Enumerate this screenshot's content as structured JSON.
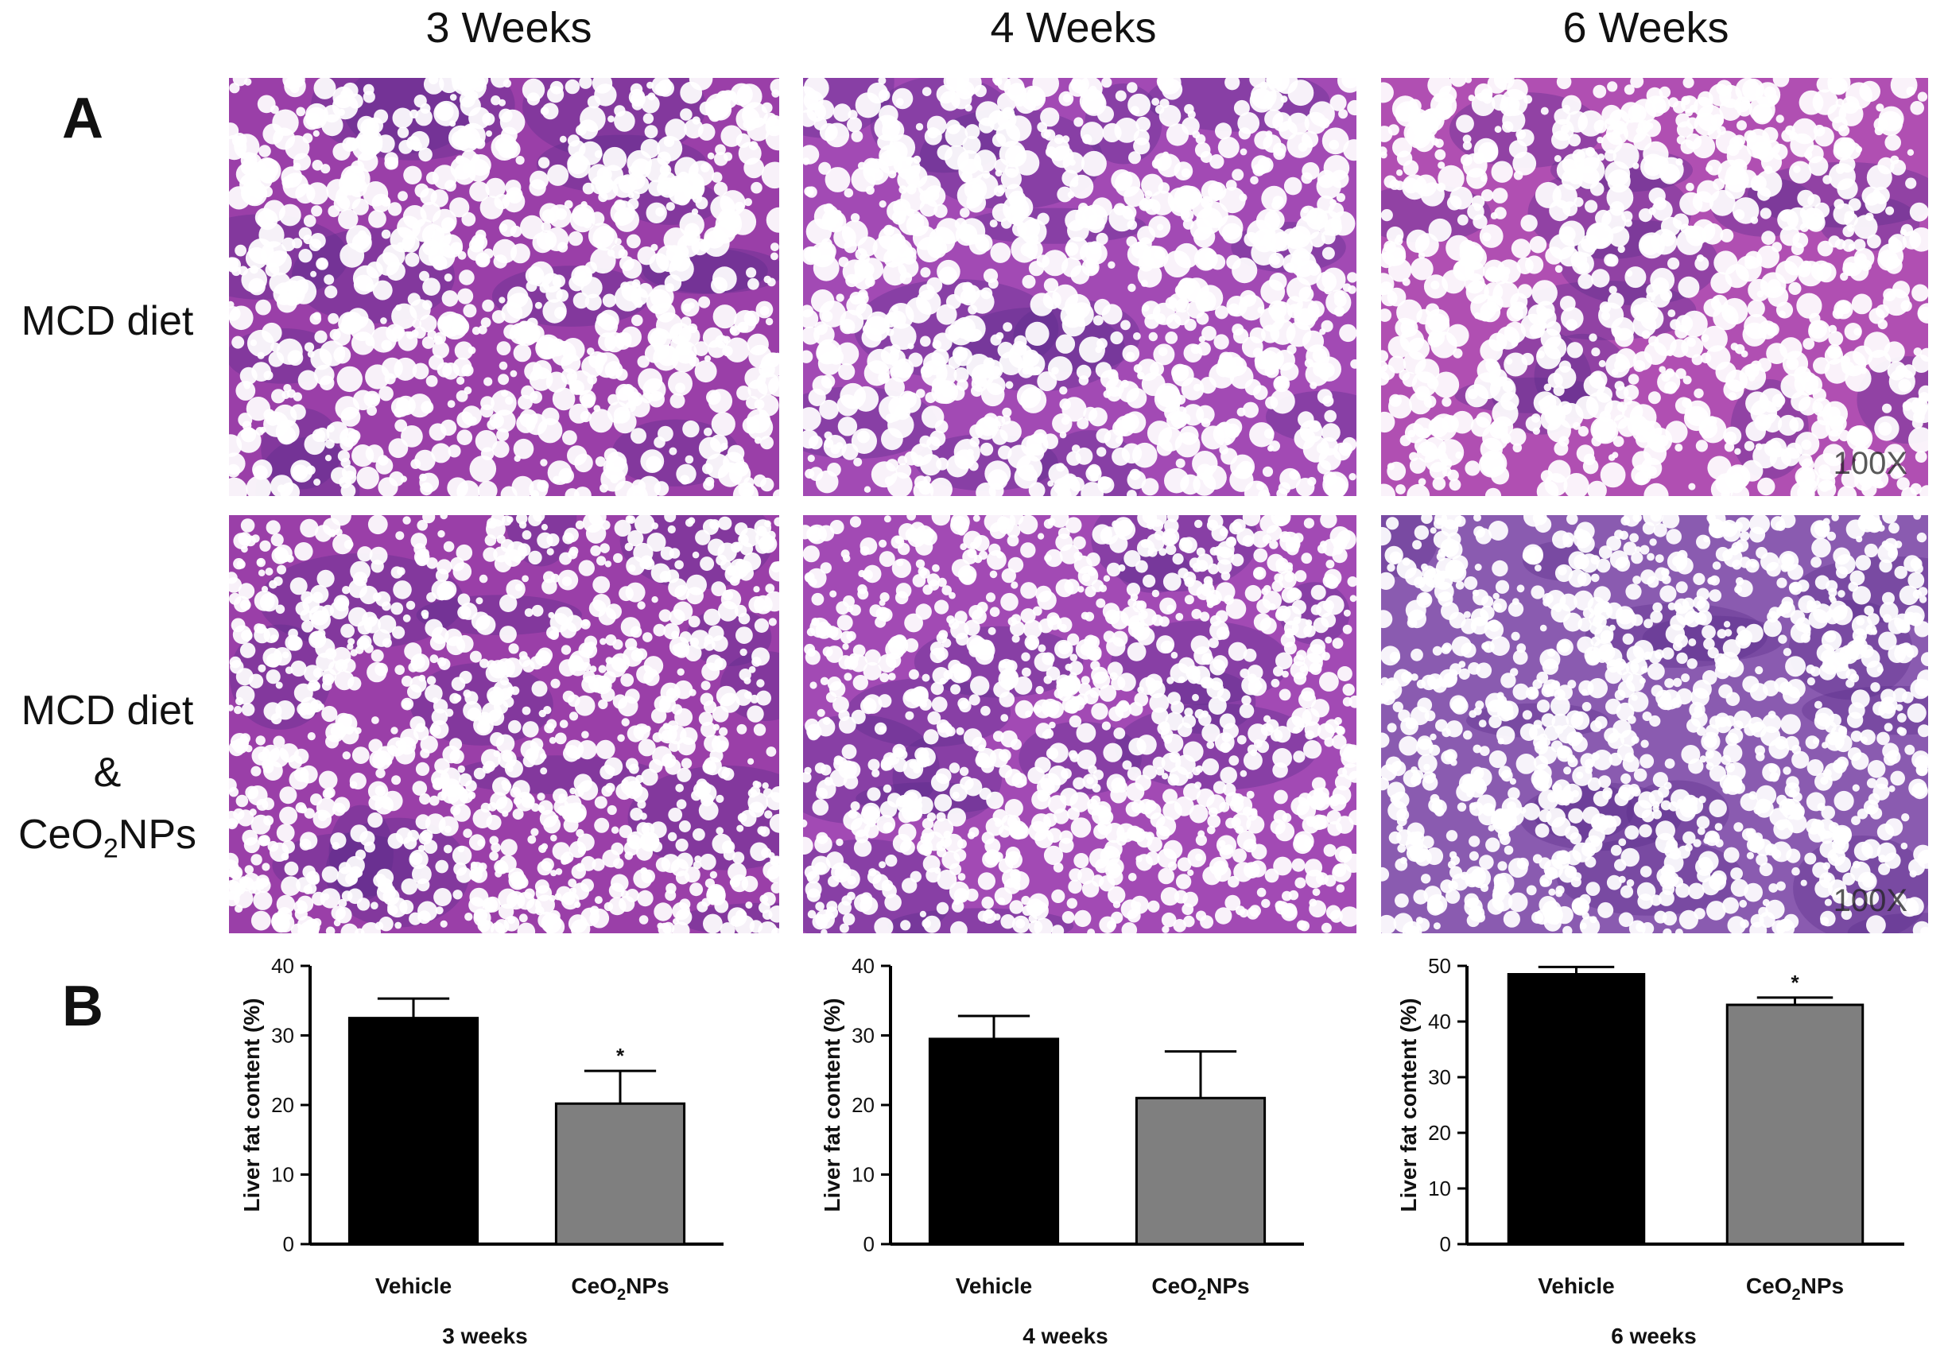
{
  "panel_a": {
    "letter": "A",
    "columns": [
      "3 Weeks",
      "4 Weeks",
      "6 Weeks"
    ],
    "rows": [
      {
        "lines": [
          "MCD diet"
        ]
      },
      {
        "lines": [
          "MCD diet",
          "&",
          "CeO",
          "2",
          "NPs"
        ]
      }
    ],
    "magnification": "100X",
    "tissue_colors": {
      "background": [
        "#9a3fa8",
        "#a24ab4",
        "#b04fb2"
      ],
      "cluster": "#5a2b8a",
      "vacuole": "#ffffff"
    }
  },
  "panel_b": {
    "letter": "B"
  },
  "chart_data": [
    {
      "type": "bar",
      "categories": [
        "Vehicle",
        "CeO2NPs"
      ],
      "category_labels": [
        [
          "Vehicle"
        ],
        [
          "CeO",
          "2",
          "NPs"
        ]
      ],
      "values": [
        32.5,
        20.2
      ],
      "errors": [
        2.8,
        4.7
      ],
      "bar_colors": [
        "#000000",
        "#7f7f7f"
      ],
      "significance": [
        "",
        "*"
      ],
      "xlabel": "3 weeks",
      "ylabel": "Liver fat content (%)",
      "ylim": [
        0,
        40
      ],
      "yticks": [
        0,
        10,
        20,
        30,
        40
      ]
    },
    {
      "type": "bar",
      "categories": [
        "Vehicle",
        "CeO2NPs"
      ],
      "category_labels": [
        [
          "Vehicle"
        ],
        [
          "CeO",
          "2",
          "NPs"
        ]
      ],
      "values": [
        29.5,
        21.0
      ],
      "errors": [
        3.3,
        6.7
      ],
      "bar_colors": [
        "#000000",
        "#7f7f7f"
      ],
      "significance": [
        "",
        ""
      ],
      "xlabel": "4 weeks",
      "ylabel": "Liver fat content (%)",
      "ylim": [
        0,
        40
      ],
      "yticks": [
        0,
        10,
        20,
        30,
        40
      ]
    },
    {
      "type": "bar",
      "categories": [
        "Vehicle",
        "CeO2NPs"
      ],
      "category_labels": [
        [
          "Vehicle"
        ],
        [
          "CeO",
          "2",
          "NPs"
        ]
      ],
      "values": [
        48.5,
        43.0
      ],
      "errors": [
        1.3,
        1.3
      ],
      "bar_colors": [
        "#000000",
        "#7f7f7f"
      ],
      "significance": [
        "",
        "*"
      ],
      "xlabel": "6 weeks",
      "ylabel": "Liver fat content (%)",
      "ylim": [
        0,
        50
      ],
      "yticks": [
        0,
        10,
        20,
        30,
        40,
        50
      ]
    }
  ]
}
